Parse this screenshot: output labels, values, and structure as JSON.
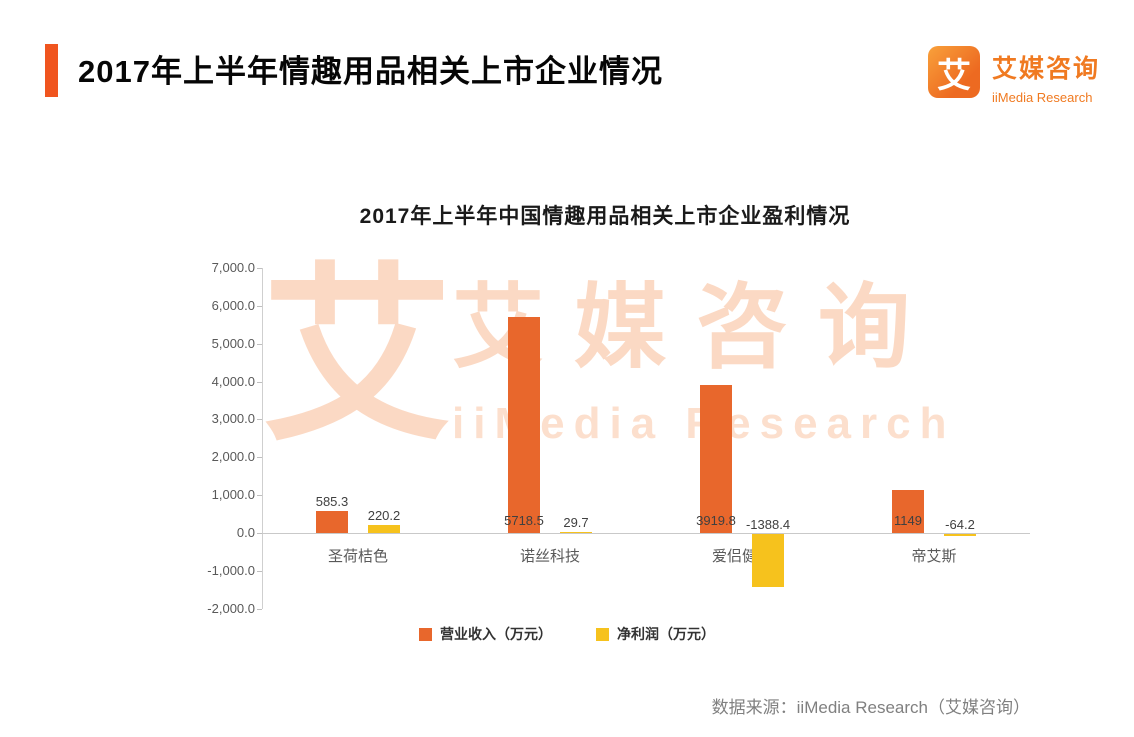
{
  "page": {
    "title": "2017年上半年情趣用品相关上市企业情况",
    "source": "数据来源：iiMedia Research（艾媒咨询）"
  },
  "logo": {
    "glyph": "艾",
    "name_cn": "艾媒咨询",
    "name_en": "iiMedia Research"
  },
  "watermark": {
    "glyph": "艾",
    "text_cn": "艾媒咨询",
    "text_en": "iiMedia Research"
  },
  "colors": {
    "accent": "#F0551F",
    "bar_orange": "#E8672C",
    "bar_yellow": "#F6C21D"
  },
  "chart_data": {
    "type": "bar",
    "title": "2017年上半年中国情趣用品相关上市企业盈利情况",
    "categories": [
      "圣荷桔色",
      "诺丝科技",
      "爱侣健康",
      "帝艾斯"
    ],
    "series": [
      {
        "name": "营业收入（万元）",
        "color": "#E8672C",
        "values": [
          585.3,
          5718.5,
          3919.8,
          1149
        ]
      },
      {
        "name": "净利润（万元）",
        "color": "#F6C21D",
        "values": [
          220.2,
          29.7,
          -1388.4,
          -64.2
        ]
      }
    ],
    "value_labels": [
      [
        "585.3",
        "5718.5",
        "3919.8",
        "1149"
      ],
      [
        "220.2",
        "29.7",
        "-1388.4",
        "-64.2"
      ]
    ],
    "ylim": [
      -2000,
      7000
    ],
    "ytick_step": 1000,
    "yticks": [
      "7,000.0",
      "6,000.0",
      "5,000.0",
      "4,000.0",
      "3,000.0",
      "2,000.0",
      "1,000.0",
      "0.0",
      "-1,000.0",
      "-2,000.0"
    ],
    "grid": false,
    "legend_position": "bottom"
  }
}
